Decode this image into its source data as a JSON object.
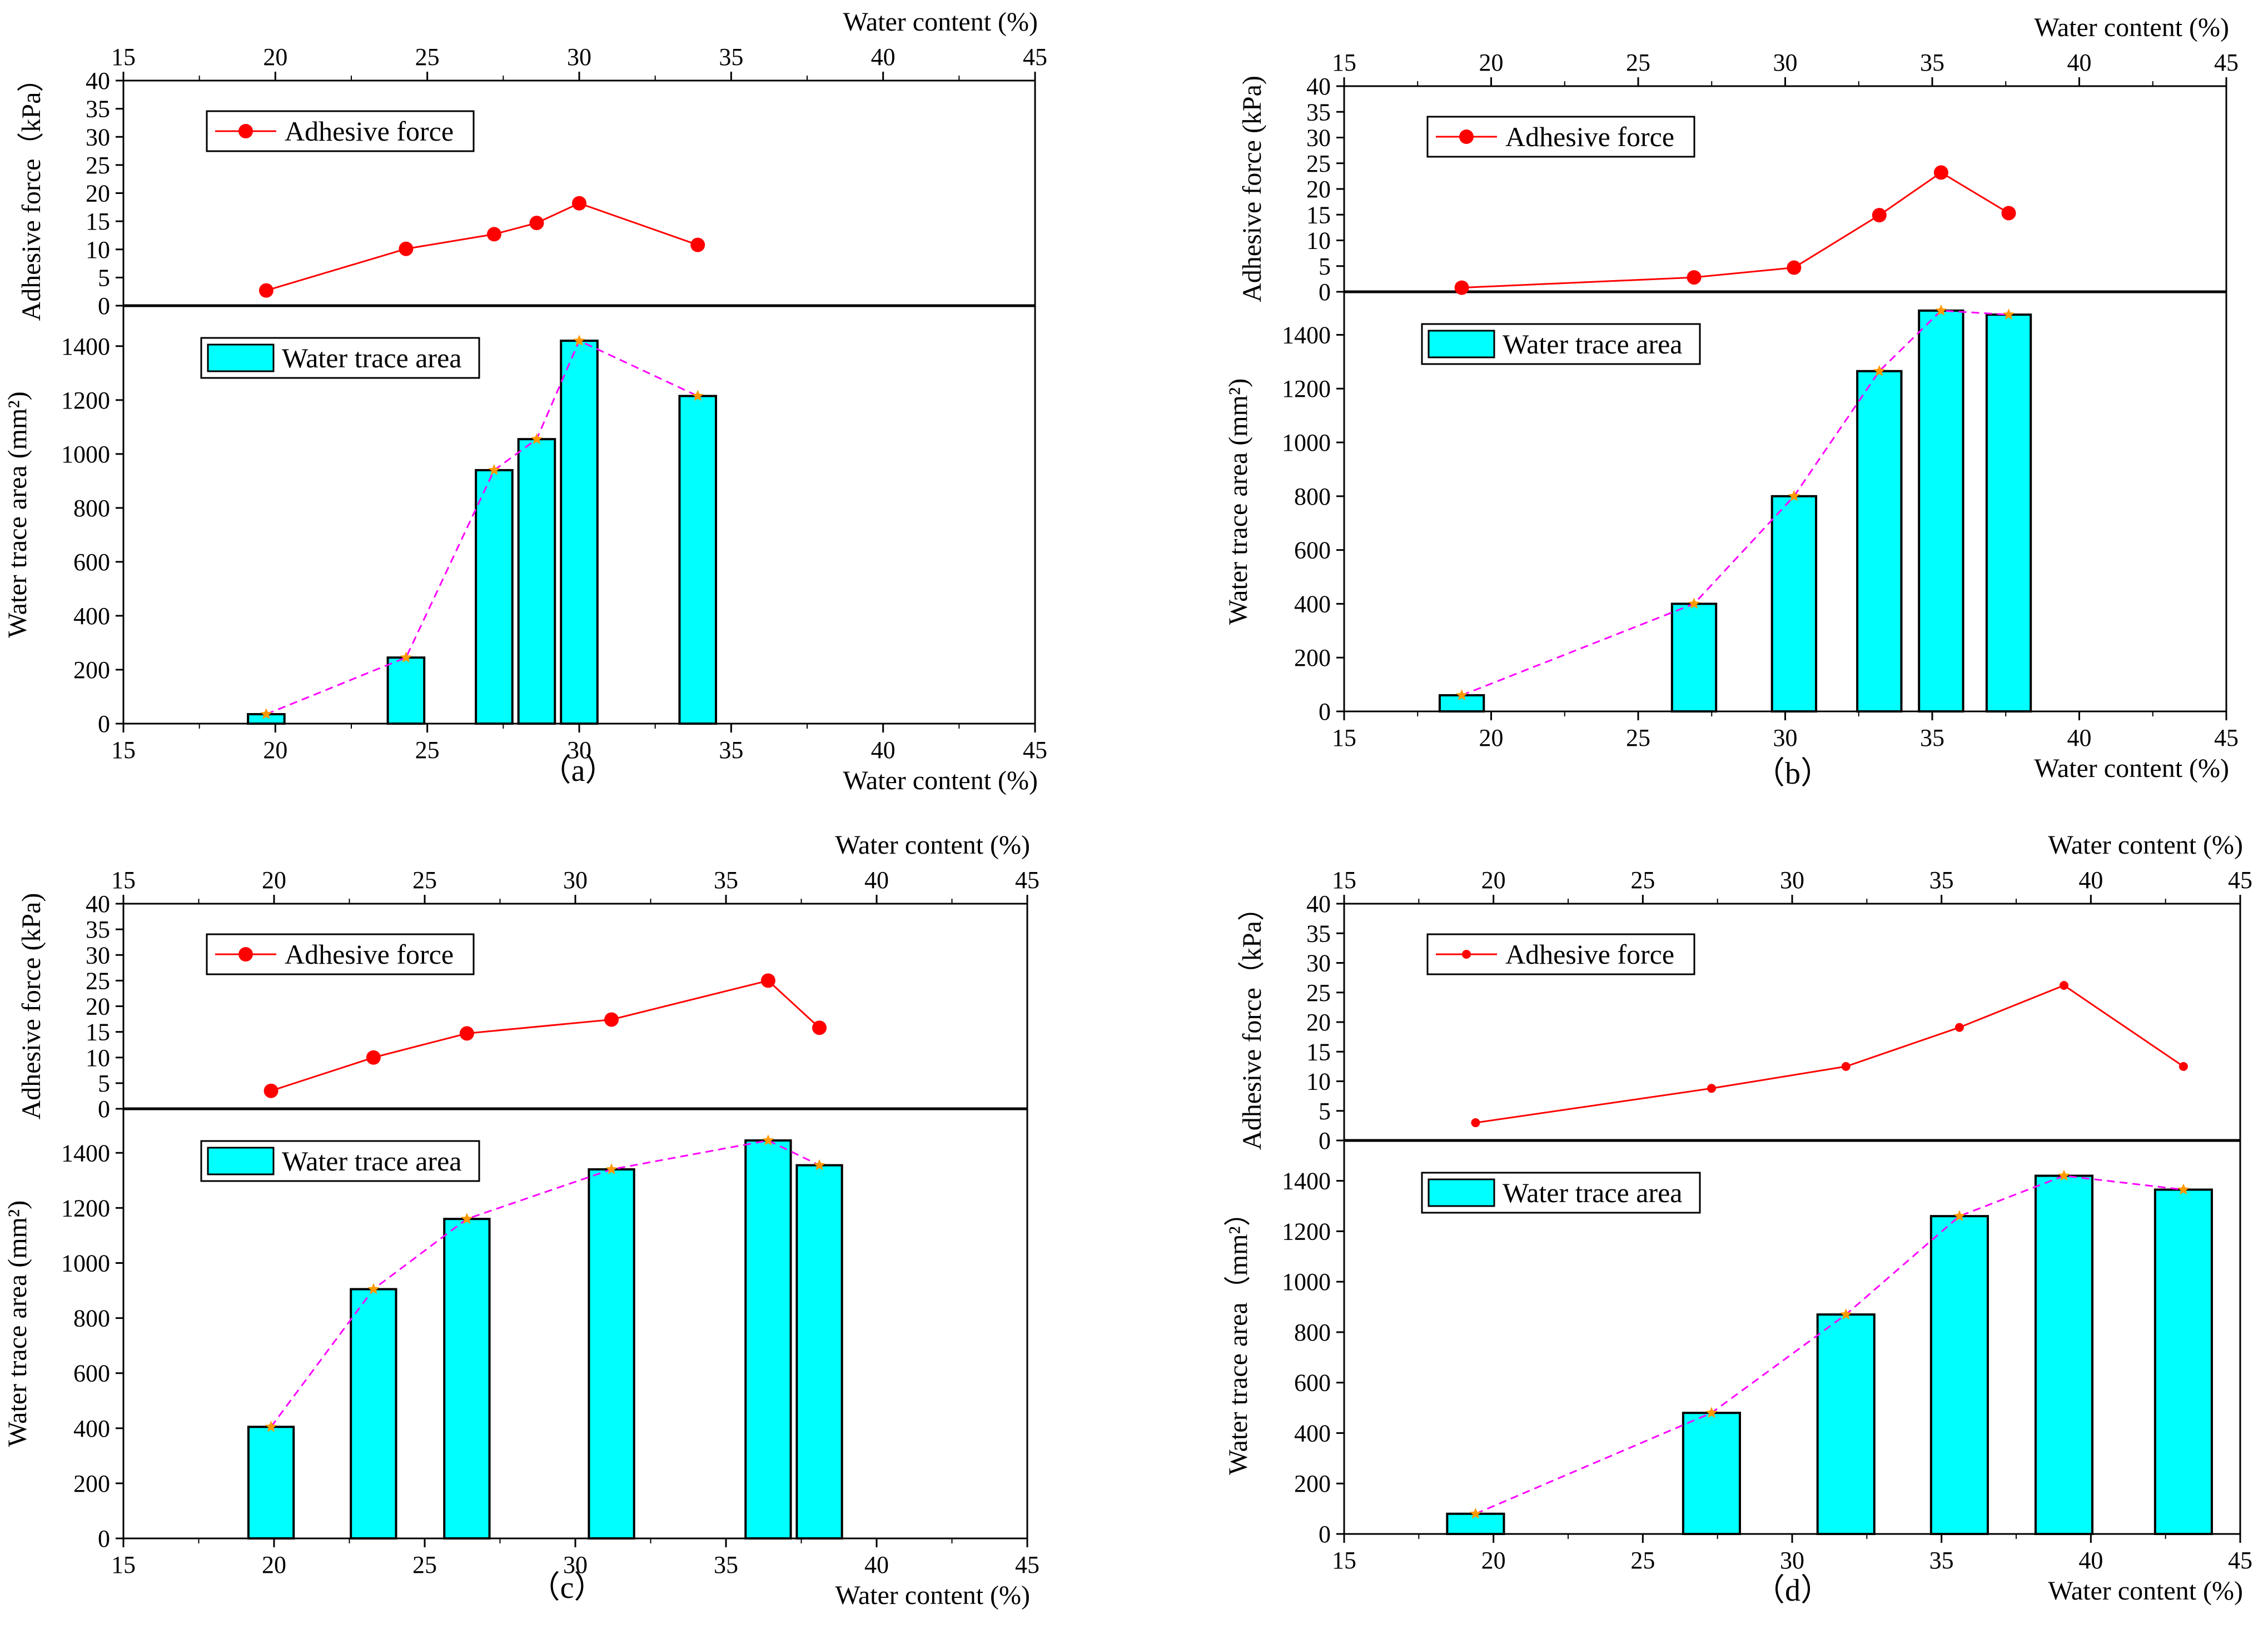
{
  "figure": {
    "colors": {
      "adhesive": "#ff0000",
      "bar_fill": "#00ffff",
      "bar_stroke": "#000000",
      "trend_line": "#ff00ff",
      "trend_marker": "#ff9900"
    },
    "legend_labels": {
      "adhesive": "Adhesive force",
      "water": "Water trace area"
    },
    "axis_titles": {
      "x_top": "Water content (%)",
      "x_bottom": "Water content (%)",
      "y_top_abc": "Adhesive force（kPa）",
      "y_top_b": "Adhesive force (kPa)",
      "y_top_d": "Adhesive force（kPa）",
      "y_bottom": "Water trace area (mm²)",
      "y_bottom_d": "Water trace area（mm²）"
    }
  },
  "chart_data": [
    {
      "id": "a",
      "panel_label": "（a）",
      "type": "line+bar",
      "xlim": [
        15,
        45
      ],
      "x_ticks": [
        15,
        20,
        25,
        30,
        35,
        40,
        45
      ],
      "top": {
        "ylabel": "Adhesive force（kPa）",
        "ylim": [
          0,
          40
        ],
        "y_ticks": [
          0,
          5,
          10,
          15,
          20,
          25,
          30,
          35,
          40
        ],
        "x": [
          19.7,
          24.3,
          27.2,
          28.6,
          30.0,
          33.9
        ],
        "values": [
          2.7,
          10.1,
          12.7,
          14.7,
          18.2,
          10.8
        ]
      },
      "bottom": {
        "ylabel": "Water trace area (mm²)",
        "ylim": [
          0,
          1550
        ],
        "y_ticks": [
          0,
          200,
          400,
          600,
          800,
          1000,
          1200,
          1400
        ],
        "x": [
          19.7,
          24.3,
          27.2,
          28.6,
          30.0,
          33.9
        ],
        "values": [
          35,
          245,
          940,
          1055,
          1420,
          1215
        ],
        "bar_width": 1.2
      }
    },
    {
      "id": "b",
      "panel_label": "（b）",
      "type": "line+bar",
      "xlim": [
        15,
        45
      ],
      "x_ticks": [
        15,
        20,
        25,
        30,
        35,
        40,
        45
      ],
      "top": {
        "ylabel": "Adhesive force (kPa)",
        "ylim": [
          0,
          40
        ],
        "y_ticks": [
          0,
          5,
          10,
          15,
          20,
          25,
          30,
          35,
          40
        ],
        "x": [
          19.0,
          26.9,
          30.3,
          33.2,
          35.3,
          37.6
        ],
        "values": [
          0.8,
          2.8,
          4.7,
          14.9,
          23.2,
          15.3
        ]
      },
      "bottom": {
        "ylabel": "Water trace area (mm²)",
        "ylim": [
          0,
          1560
        ],
        "y_ticks": [
          0,
          200,
          400,
          600,
          800,
          1000,
          1200,
          1400
        ],
        "x": [
          19.0,
          26.9,
          30.3,
          33.2,
          35.3,
          37.6
        ],
        "values": [
          60,
          400,
          800,
          1265,
          1490,
          1475
        ],
        "bar_width": 1.5
      }
    },
    {
      "id": "c",
      "panel_label": "（c）",
      "type": "line+bar",
      "xlim": [
        15,
        45
      ],
      "x_ticks": [
        15,
        20,
        25,
        30,
        35,
        40,
        45
      ],
      "top": {
        "ylabel": "Adhesive force (kPa)",
        "ylim": [
          0,
          40
        ],
        "y_ticks": [
          0,
          5,
          10,
          15,
          20,
          25,
          30,
          35,
          40
        ],
        "x": [
          19.9,
          23.3,
          26.4,
          31.2,
          36.4,
          38.1
        ],
        "values": [
          3.5,
          10.0,
          14.7,
          17.4,
          25.0,
          15.8
        ]
      },
      "bottom": {
        "ylabel": "Water trace area (mm²)",
        "ylim": [
          0,
          1560
        ],
        "y_ticks": [
          0,
          200,
          400,
          600,
          800,
          1000,
          1200,
          1400
        ],
        "x": [
          19.9,
          23.3,
          26.4,
          31.2,
          36.4,
          38.1
        ],
        "values": [
          405,
          905,
          1160,
          1340,
          1445,
          1355
        ],
        "bar_width": 1.5
      }
    },
    {
      "id": "d",
      "panel_label": "（d）",
      "type": "line+bar",
      "xlim": [
        15,
        45
      ],
      "x_ticks": [
        15,
        20,
        25,
        30,
        35,
        40,
        45
      ],
      "top": {
        "ylabel": "Adhesive force（kPa）",
        "ylim": [
          0,
          40
        ],
        "y_ticks": [
          0,
          5,
          10,
          15,
          20,
          25,
          30,
          35,
          40
        ],
        "x": [
          19.4,
          27.3,
          31.8,
          35.6,
          39.1,
          43.1
        ],
        "values": [
          3.0,
          8.8,
          12.5,
          19.1,
          26.2,
          12.5
        ]
      },
      "bottom": {
        "ylabel": "Water trace area（mm²）",
        "ylim": [
          0,
          1560
        ],
        "y_ticks": [
          0,
          200,
          400,
          600,
          800,
          1000,
          1200,
          1400
        ],
        "x": [
          19.4,
          27.3,
          31.8,
          35.6,
          39.1,
          43.1
        ],
        "values": [
          80,
          480,
          870,
          1260,
          1420,
          1365
        ],
        "bar_width": 1.9
      }
    }
  ]
}
